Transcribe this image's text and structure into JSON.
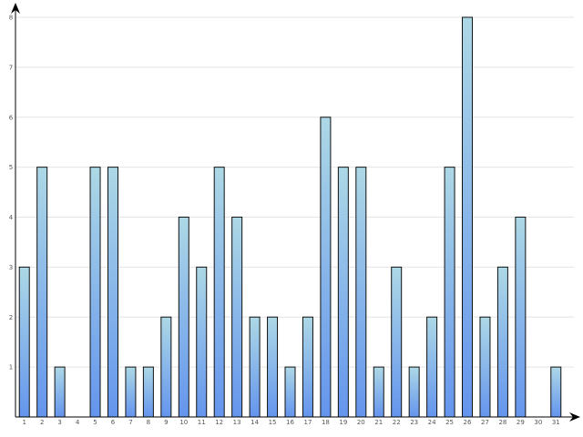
{
  "chart_data": {
    "type": "bar",
    "title": "",
    "xlabel": "",
    "ylabel": "",
    "categories": [
      "1",
      "2",
      "3",
      "4",
      "5",
      "6",
      "7",
      "8",
      "9",
      "10",
      "11",
      "12",
      "13",
      "14",
      "15",
      "16",
      "17",
      "18",
      "19",
      "20",
      "21",
      "22",
      "23",
      "24",
      "25",
      "26",
      "27",
      "28",
      "29",
      "30",
      "31"
    ],
    "values": [
      3,
      5,
      1,
      0,
      5,
      5,
      1,
      1,
      2,
      4,
      3,
      5,
      4,
      2,
      2,
      1,
      2,
      6,
      5,
      5,
      1,
      3,
      1,
      2,
      5,
      8,
      2,
      3,
      4,
      0,
      1
    ],
    "ylim": [
      0,
      8
    ],
    "yticks": [
      "1",
      "2",
      "3",
      "4",
      "5",
      "6",
      "7",
      "8"
    ],
    "grid": true,
    "legend": "none",
    "colors": {
      "bar_top": "#add8e6",
      "bar_bottom": "#6495ed",
      "bar_stroke": "#111111",
      "grid": "#e4e4e4",
      "axis": "#000000"
    }
  }
}
